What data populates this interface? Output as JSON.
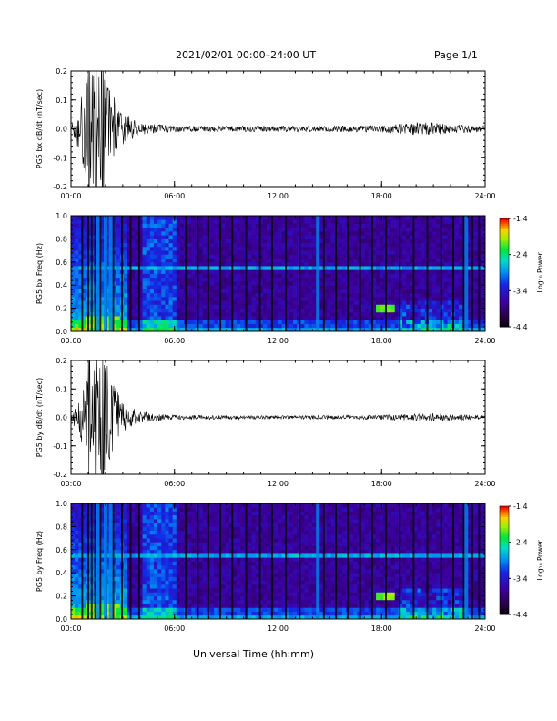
{
  "header": {
    "title": "2021/02/01  00:00–24:00 UT",
    "page": "Page 1/1"
  },
  "footer": {
    "xlabel": "Universal Time (hh:mm)"
  },
  "colorbar": {
    "label": "Log₁₀ Power",
    "ticks": [
      "-1.4",
      "-2.4",
      "-3.4",
      "-4.4"
    ],
    "range": [
      -4.4,
      -1.4
    ]
  },
  "chart_data": [
    {
      "type": "line",
      "ylabel": "PG5 bx dB/dt (nT/sec)",
      "xlim": [
        "00:00",
        "24:00"
      ],
      "ylim": [
        -0.2,
        0.2
      ],
      "xticks": [
        "00:00",
        "06:00",
        "12:00",
        "18:00",
        "24:00"
      ],
      "yticks": [
        "0.2",
        "0.1",
        "0.0",
        "-0.1",
        "-0.2"
      ],
      "series": [
        {
          "x": [
            0,
            1,
            1.5,
            2,
            3,
            4,
            6,
            12,
            18,
            20.5,
            21,
            24
          ],
          "amplitude": [
            0.01,
            0.18,
            0.2,
            0.2,
            0.06,
            0.02,
            0.01,
            0.01,
            0.012,
            0.025,
            0.02,
            0.01
          ]
        }
      ]
    },
    {
      "type": "heatmap",
      "ylabel": "PG5 bx Freq (Hz)",
      "xlim": [
        "00:00",
        "24:00"
      ],
      "ylim": [
        0.0,
        1.0
      ],
      "xticks": [
        "00:00",
        "06:00",
        "12:00",
        "18:00",
        "24:00"
      ],
      "yticks": [
        "1.0",
        "0.8",
        "0.6",
        "0.4",
        "0.2",
        "0.0"
      ],
      "features": {
        "line_hz": 0.56,
        "bright_band_hours": [
          4.2,
          6.2
        ],
        "hot_patch": {
          "hours": [
            17.6,
            18.8
          ],
          "hz": [
            0.15,
            0.25
          ]
        }
      }
    },
    {
      "type": "line",
      "ylabel": "PG5 by dB/dt (nT/sec)",
      "xlim": [
        "00:00",
        "24:00"
      ],
      "ylim": [
        -0.2,
        0.2
      ],
      "xticks": [
        "00:00",
        "06:00",
        "12:00",
        "18:00",
        "24:00"
      ],
      "yticks": [
        "0.2",
        "0.1",
        "0.0",
        "-0.1",
        "-0.2"
      ],
      "series": [
        {
          "x": [
            0,
            1,
            1.5,
            2,
            3,
            4,
            6,
            12,
            18,
            21,
            24
          ],
          "amplitude": [
            0.01,
            0.18,
            0.2,
            0.2,
            0.05,
            0.02,
            0.008,
            0.006,
            0.008,
            0.015,
            0.006
          ]
        }
      ]
    },
    {
      "type": "heatmap",
      "ylabel": "PG5 by Freq (Hz)",
      "xlim": [
        "00:00",
        "24:00"
      ],
      "ylim": [
        0.0,
        1.0
      ],
      "xticks": [
        "00:00",
        "06:00",
        "12:00",
        "18:00",
        "24:00"
      ],
      "yticks": [
        "1.0",
        "0.8",
        "0.6",
        "0.4",
        "0.2",
        "0.0"
      ],
      "features": {
        "line_hz": 0.56,
        "bright_band_hours": [
          4.2,
          6.2
        ],
        "hot_patch": {
          "hours": [
            17.6,
            18.8
          ],
          "hz": [
            0.15,
            0.25
          ]
        }
      }
    }
  ]
}
